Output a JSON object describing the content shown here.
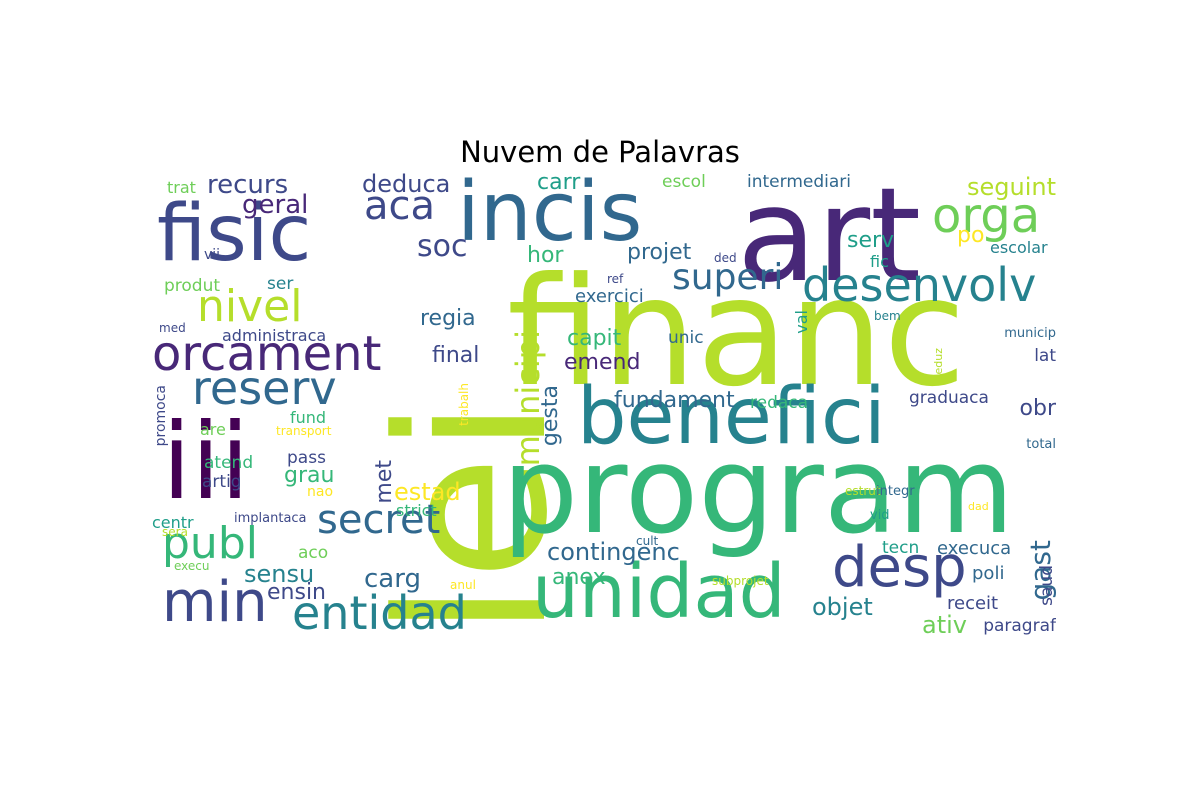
{
  "title": "Nuvem de Palavras",
  "palette": [
    "#440154",
    "#482878",
    "#3e4989",
    "#31688e",
    "#26828e",
    "#1f9e89",
    "#35b779",
    "#6ece58",
    "#b5de2b",
    "#fde725"
  ],
  "words": [
    {
      "text": "lei",
      "color": "#b5de2b"
    },
    {
      "text": "financ",
      "color": "#b5de2b"
    },
    {
      "text": "program",
      "color": "#35b779"
    },
    {
      "text": "art",
      "color": "#482878"
    },
    {
      "text": "incis",
      "color": "#31688e"
    },
    {
      "text": "fisic",
      "color": "#3e4989"
    },
    {
      "text": "iii",
      "color": "#440154"
    },
    {
      "text": "benefici",
      "color": "#26828e"
    },
    {
      "text": "unidad",
      "color": "#35b779"
    },
    {
      "text": "desenvolv",
      "color": "#26828e"
    },
    {
      "text": "orcament",
      "color": "#482878"
    },
    {
      "text": "reserv",
      "color": "#31688e"
    },
    {
      "text": "desp",
      "color": "#3e4989"
    },
    {
      "text": "min",
      "color": "#3e4989"
    },
    {
      "text": "entidad",
      "color": "#26828e"
    },
    {
      "text": "secret",
      "color": "#31688e"
    },
    {
      "text": "publ",
      "color": "#35b779"
    },
    {
      "text": "orga",
      "color": "#6ece58"
    },
    {
      "text": "aca",
      "color": "#3e4989"
    },
    {
      "text": "nivel",
      "color": "#b5de2b"
    },
    {
      "text": "superi",
      "color": "#31688e"
    },
    {
      "text": "municipi",
      "color": "#b5de2b"
    },
    {
      "text": "recurs",
      "color": "#3e4989"
    },
    {
      "text": "deduca",
      "color": "#3e4989"
    },
    {
      "text": "geral",
      "color": "#482878"
    },
    {
      "text": "soc",
      "color": "#3e4989"
    },
    {
      "text": "carr",
      "color": "#1f9e89"
    },
    {
      "text": "escol",
      "color": "#6ece58"
    },
    {
      "text": "intermediari",
      "color": "#31688e"
    },
    {
      "text": "seguint",
      "color": "#b5de2b"
    },
    {
      "text": "serv",
      "color": "#1f9e89"
    },
    {
      "text": "po",
      "color": "#fde725"
    },
    {
      "text": "escolar",
      "color": "#26828e"
    },
    {
      "text": "hor",
      "color": "#35b779"
    },
    {
      "text": "projet",
      "color": "#31688e"
    },
    {
      "text": "fic",
      "color": "#1f9e89"
    },
    {
      "text": "regia",
      "color": "#31688e"
    },
    {
      "text": "exercici",
      "color": "#31688e"
    },
    {
      "text": "capit",
      "color": "#35b779"
    },
    {
      "text": "unic",
      "color": "#31688e"
    },
    {
      "text": "final",
      "color": "#3e4989"
    },
    {
      "text": "emend",
      "color": "#482878"
    },
    {
      "text": "gesta",
      "color": "#31688e"
    },
    {
      "text": "fundament",
      "color": "#31688e"
    },
    {
      "text": "redaca",
      "color": "#35b779"
    },
    {
      "text": "graduaca",
      "color": "#3e4989"
    },
    {
      "text": "obr",
      "color": "#3e4989"
    },
    {
      "text": "lat",
      "color": "#3e4989"
    },
    {
      "text": "met",
      "color": "#3e4989"
    },
    {
      "text": "estad",
      "color": "#fde725"
    },
    {
      "text": "contingenc",
      "color": "#31688e"
    },
    {
      "text": "anex",
      "color": "#35b779"
    },
    {
      "text": "objet",
      "color": "#26828e"
    },
    {
      "text": "carg",
      "color": "#31688e"
    },
    {
      "text": "sensu",
      "color": "#26828e"
    },
    {
      "text": "ensin",
      "color": "#3e4989"
    },
    {
      "text": "gast",
      "color": "#31688e"
    },
    {
      "text": "execuca",
      "color": "#31688e"
    },
    {
      "text": "poli",
      "color": "#31688e"
    },
    {
      "text": "tecn",
      "color": "#1f9e89"
    },
    {
      "text": "receit",
      "color": "#3e4989"
    },
    {
      "text": "ativ",
      "color": "#6ece58"
    },
    {
      "text": "paragraf",
      "color": "#3e4989"
    },
    {
      "text": "saud",
      "color": "#3e4989"
    },
    {
      "text": "trat",
      "color": "#6ece58"
    },
    {
      "text": "vii",
      "color": "#3e4989"
    },
    {
      "text": "produt",
      "color": "#6ece58"
    },
    {
      "text": "ser",
      "color": "#26828e"
    },
    {
      "text": "med",
      "color": "#3e4989"
    },
    {
      "text": "administraca",
      "color": "#3e4989"
    },
    {
      "text": "promoca",
      "color": "#3e4989"
    },
    {
      "text": "fund",
      "color": "#35b779"
    },
    {
      "text": "are",
      "color": "#6ece58"
    },
    {
      "text": "transport",
      "color": "#fde725"
    },
    {
      "text": "pass",
      "color": "#3e4989"
    },
    {
      "text": "grau",
      "color": "#35b779"
    },
    {
      "text": "atend",
      "color": "#35b779"
    },
    {
      "text": "artig",
      "color": "#3e4989"
    },
    {
      "text": "nao",
      "color": "#fde725"
    },
    {
      "text": "centr",
      "color": "#1f9e89"
    },
    {
      "text": "implantaca",
      "color": "#3e4989"
    },
    {
      "text": "strict",
      "color": "#35b779"
    },
    {
      "text": "aco",
      "color": "#6ece58"
    },
    {
      "text": "sera",
      "color": "#b5de2b"
    },
    {
      "text": "execu",
      "color": "#6ece58"
    },
    {
      "text": "anul",
      "color": "#fde725"
    },
    {
      "text": "trabalh",
      "color": "#fde725"
    },
    {
      "text": "cult",
      "color": "#31688e"
    },
    {
      "text": "subprojet",
      "color": "#b5de2b"
    },
    {
      "text": "ref",
      "color": "#3e4989"
    },
    {
      "text": "ded",
      "color": "#3e4989"
    },
    {
      "text": "estrut",
      "color": "#b5de2b"
    },
    {
      "text": "val",
      "color": "#1f9e89"
    },
    {
      "text": "bem",
      "color": "#26828e"
    },
    {
      "text": "municip",
      "color": "#31688e"
    },
    {
      "text": "deduz",
      "color": "#b5de2b"
    },
    {
      "text": "total",
      "color": "#31688e"
    },
    {
      "text": "integr",
      "color": "#31688e"
    },
    {
      "text": "vid",
      "color": "#1f9e89"
    },
    {
      "text": "dad",
      "color": "#fde725"
    }
  ]
}
